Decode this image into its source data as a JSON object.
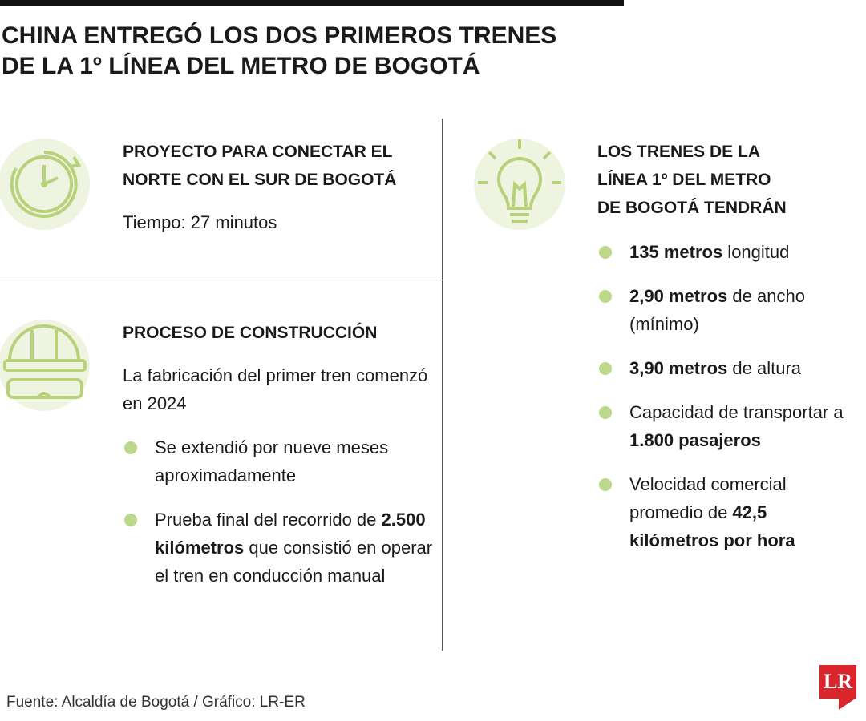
{
  "header": {
    "title": [
      "CHINA ENTREGÓ LOS DOS PRIMEROS TRENES",
      "DE LA 1º LÍNEA DEL METRO DE BOGOTÁ"
    ]
  },
  "sections": [
    {
      "heading": [
        "PROYECTO PARA CONECTAR EL",
        "NORTE CON EL SUR DE BOGOTÁ"
      ],
      "text": "Tiempo: 27 minutos"
    },
    {
      "heading": [
        "PROCESO DE CONSTRUCCIÓN"
      ],
      "text": "La fabricación del primer tren comenzó en 2024",
      "bullets": [
        [
          {
            "text": "Se extendió por nueve meses aproximadamente"
          }
        ],
        [
          {
            "text": "Prueba final del recorrido de "
          },
          {
            "text": "2.500 kilómetros",
            "bold": true
          },
          {
            "text": " que consistió en operar el tren en conducción manual"
          }
        ]
      ]
    },
    {
      "heading": [
        "LOS TRENES DE LA",
        "LÍNEA 1º DEL METRO",
        "DE BOGOTÁ TENDRÁN"
      ],
      "bullets": [
        [
          {
            "text": "135 metros",
            "bold": true
          },
          {
            "text": " longitud"
          }
        ],
        [
          {
            "text": "2,90 metros",
            "bold": true
          },
          {
            "text": " de ancho (mínimo)"
          }
        ],
        [
          {
            "text": "3,90 metros",
            "bold": true
          },
          {
            "text": " de altura"
          }
        ],
        [
          {
            "text": "Capacidad de transportar a "
          },
          {
            "text": "1.800 pasajeros",
            "bold": true
          }
        ],
        [
          {
            "text": "Velocidad comercial promedio de "
          },
          {
            "text": "42,5 kilómetros por hora",
            "bold": true
          }
        ]
      ]
    }
  ],
  "footer": {
    "source": "Fuente: Alcaldía de Bogotá / Gráfico: LR-ER",
    "logo": "LR"
  }
}
